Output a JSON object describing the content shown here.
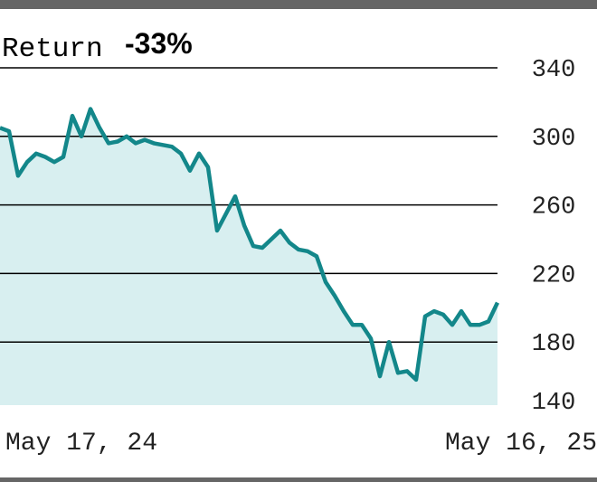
{
  "chart_data": {
    "type": "area",
    "title": "Return",
    "subtitle": "-33%",
    "categories": [
      "May 17, 24",
      null,
      null,
      null,
      null,
      null,
      null,
      null,
      null,
      null,
      null,
      null,
      null,
      null,
      null,
      null,
      null,
      null,
      null,
      null,
      null,
      null,
      null,
      null,
      null,
      null,
      null,
      null,
      null,
      null,
      null,
      null,
      null,
      null,
      null,
      null,
      null,
      null,
      null,
      null,
      null,
      null,
      null,
      null,
      null,
      null,
      null,
      null,
      null,
      null,
      null,
      null,
      null,
      null,
      null,
      "May 16, 25"
    ],
    "values": [
      305,
      303,
      277,
      285,
      290,
      288,
      285,
      288,
      312,
      300,
      316,
      305,
      296,
      297,
      300,
      296,
      298,
      296,
      295,
      294,
      290,
      280,
      290,
      282,
      245,
      255,
      265,
      248,
      236,
      235,
      240,
      245,
      238,
      234,
      233,
      230,
      215,
      207,
      198,
      190,
      190,
      182,
      160,
      180,
      162,
      163,
      158,
      195,
      198,
      196,
      190,
      198,
      190,
      190,
      192,
      203
    ],
    "color": "#13878a",
    "fill": "#d8eff0",
    "ylim": [
      140,
      340
    ],
    "yticks": [
      140,
      180,
      220,
      260,
      300,
      340
    ],
    "grid": true
  }
}
